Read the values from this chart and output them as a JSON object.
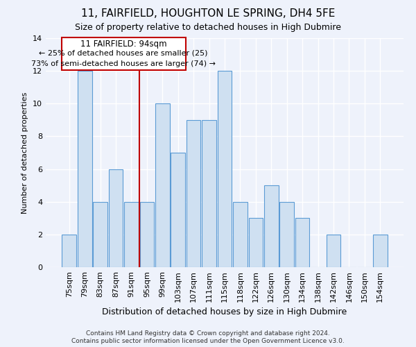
{
  "title": "11, FAIRFIELD, HOUGHTON LE SPRING, DH4 5FE",
  "subtitle": "Size of property relative to detached houses in High Dubmire",
  "xlabel": "Distribution of detached houses by size in High Dubmire",
  "ylabel": "Number of detached properties",
  "categories": [
    "75sqm",
    "79sqm",
    "83sqm",
    "87sqm",
    "91sqm",
    "95sqm",
    "99sqm",
    "103sqm",
    "107sqm",
    "111sqm",
    "115sqm",
    "118sqm",
    "122sqm",
    "126sqm",
    "130sqm",
    "134sqm",
    "138sqm",
    "142sqm",
    "146sqm",
    "150sqm",
    "154sqm"
  ],
  "values": [
    2,
    12,
    4,
    6,
    4,
    4,
    10,
    7,
    9,
    9,
    12,
    4,
    3,
    5,
    4,
    3,
    0,
    2,
    0,
    0,
    2
  ],
  "bar_color": "#cfe0f1",
  "bar_edge_color": "#5b9bd5",
  "vline_color": "#c00000",
  "vline_x": 4.5,
  "annotation_title": "11 FAIRFIELD: 94sqm",
  "annotation_line1": "← 25% of detached houses are smaller (25)",
  "annotation_line2": "73% of semi-detached houses are larger (74) →",
  "annotation_box_color": "#ffffff",
  "annotation_box_edge": "#c00000",
  "ylim": [
    0,
    14
  ],
  "yticks": [
    0,
    2,
    4,
    6,
    8,
    10,
    12,
    14
  ],
  "footnote1": "Contains HM Land Registry data © Crown copyright and database right 2024.",
  "footnote2": "Contains public sector information licensed under the Open Government Licence v3.0.",
  "background_color": "#eef2fb",
  "grid_color": "#ffffff",
  "title_fontsize": 11,
  "subtitle_fontsize": 9,
  "ylabel_fontsize": 8,
  "xlabel_fontsize": 9,
  "tick_fontsize": 8,
  "annotation_fontsize": 8
}
